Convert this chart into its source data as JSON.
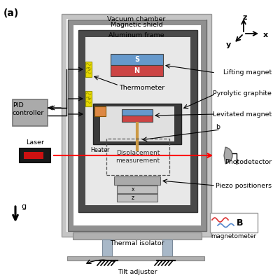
{
  "title_label": "(a)",
  "bg_color": "#ffffff",
  "labels": {
    "vacuum_chamber": "Vacuum chamber",
    "magnetic_shield": "Magnetic shield",
    "aluminum_frame": "Aluminum frame",
    "lifting_magnet": "Lifting magnet",
    "pyrolytic_graphite": "Pyrolytic graphite",
    "levitated_magnet": "Levitated magnet",
    "b_label": "b",
    "displacement": "Displacement\nmeasurement",
    "photodetector": "Photodetector",
    "piezo_positioners": "Piezo positioners",
    "magnetometer": "magnetometer",
    "thermal_isolator": "Thermal isolator",
    "tilt_adjuster": "Tilt adjuster",
    "pid_controller": "PID\ncontroller",
    "laser": "Laser",
    "thermometer": "Thermometer",
    "heater": "Heater",
    "g": "g"
  },
  "axes": {
    "z": "z",
    "y": "y",
    "x": "x"
  }
}
